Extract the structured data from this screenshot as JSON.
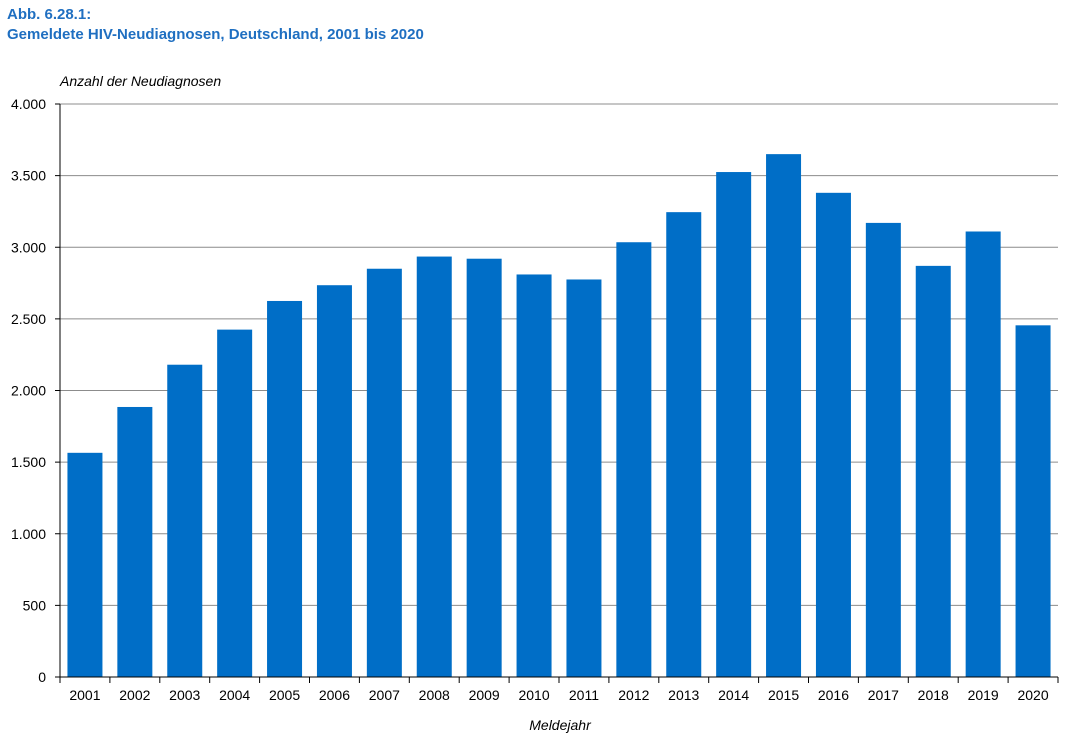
{
  "figure": {
    "label": "Abb. 6.28.1:",
    "title": "Gemeldete HIV-Neudiagnosen, Deutschland, 2001 bis 2020"
  },
  "chart_data": {
    "type": "bar",
    "title": "Gemeldete HIV-Neudiagnosen, Deutschland, 2001 bis 2020",
    "xlabel": "Meldejahr",
    "ylabel": "Anzahl der Neudiagnosen",
    "categories": [
      "2001",
      "2002",
      "2003",
      "2004",
      "2005",
      "2006",
      "2007",
      "2008",
      "2009",
      "2010",
      "2011",
      "2012",
      "2013",
      "2014",
      "2015",
      "2016",
      "2017",
      "2018",
      "2019",
      "2020"
    ],
    "values": [
      1565,
      1885,
      2180,
      2425,
      2625,
      2735,
      2850,
      2935,
      2920,
      2810,
      2775,
      3035,
      3245,
      3525,
      3650,
      3380,
      3170,
      2870,
      3110,
      2455
    ],
    "ylim": [
      0,
      4000
    ],
    "yticks": [
      0,
      500,
      1000,
      1500,
      2000,
      2500,
      3000,
      3500,
      4000
    ],
    "ytick_labels": [
      "0",
      "500",
      "1.000",
      "1.500",
      "2.000",
      "2.500",
      "3.000",
      "3.500",
      "4.000"
    ],
    "grid": true,
    "legend": "none",
    "bar_color": "#006ec7",
    "grid_color": "#8c8c8c"
  }
}
